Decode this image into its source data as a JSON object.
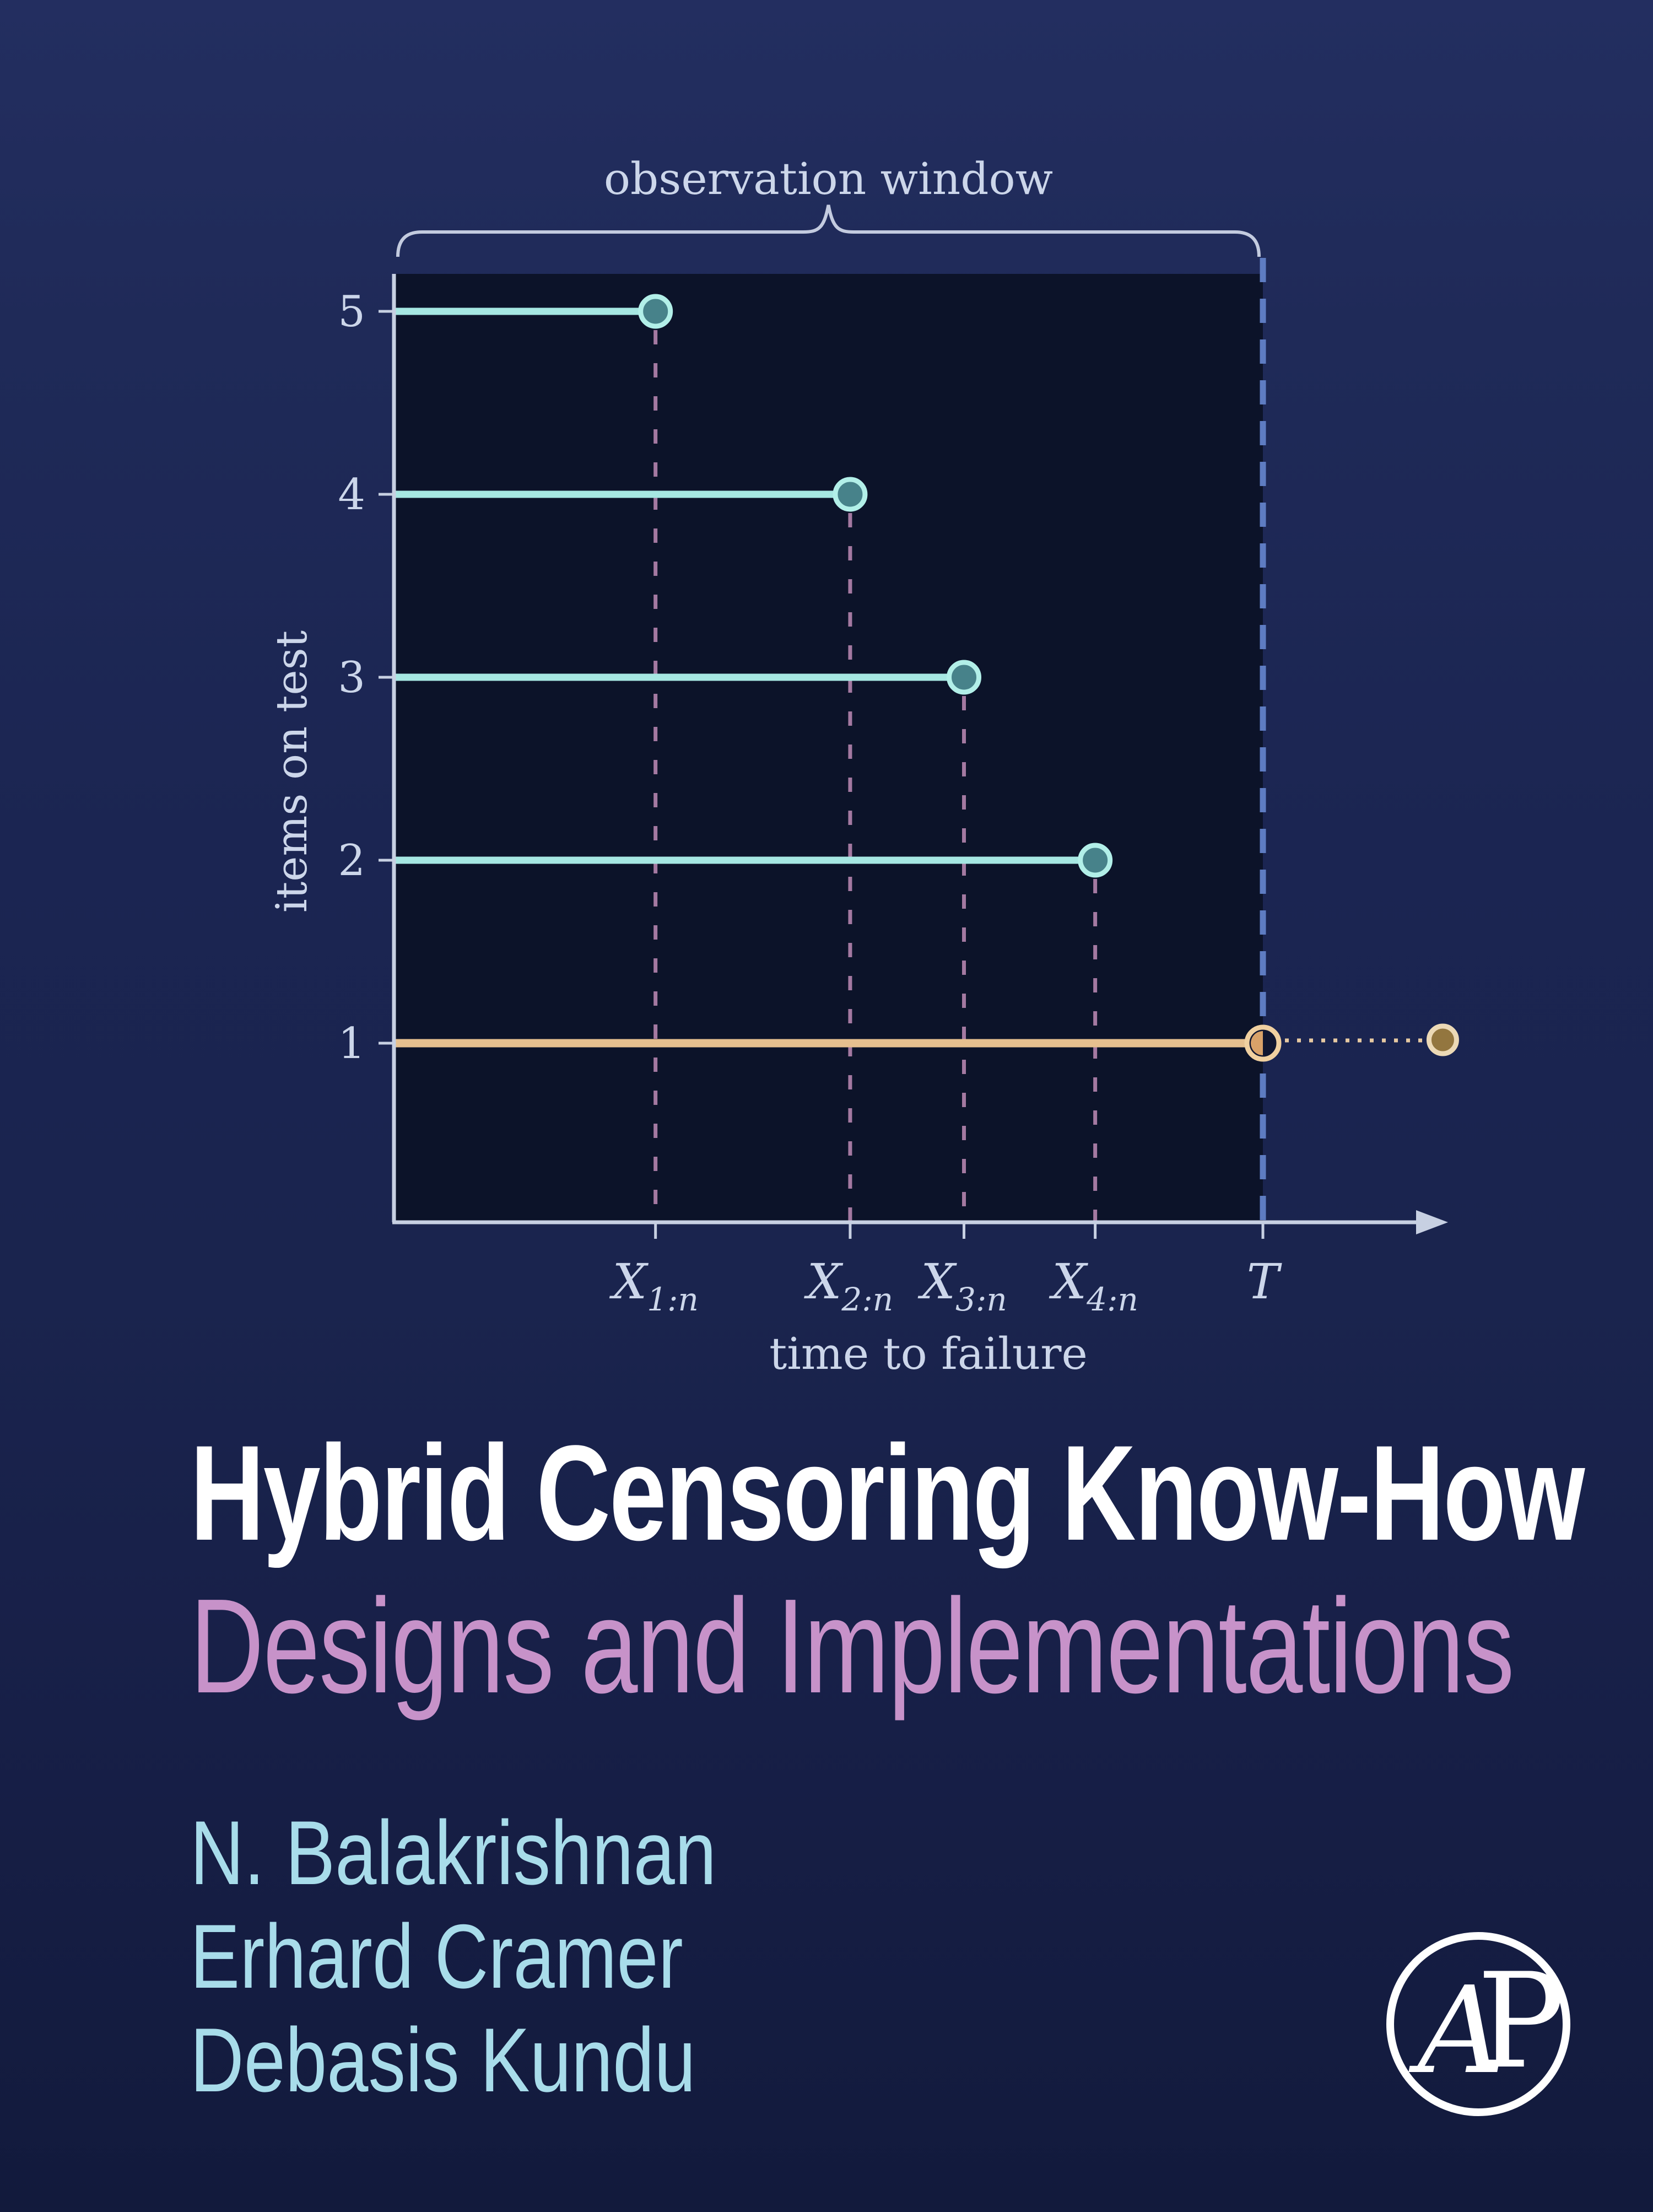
{
  "page": {
    "bg_top": "#232e60",
    "bg_bottom": "#121a3c"
  },
  "chart_data": {
    "type": "scatter",
    "description": "Hybrid censoring scheme: horizontal life-lines for 5 items on test; items 5,4,3,2 fail at ordered failure times X1:n..X4:n inside the observation window ending at time T; item 1 is still running at T (censored), its actual failure occurring beyond T.",
    "annotation": "observation window",
    "xlabel": "time to failure",
    "ylabel": "items on test",
    "y_ticks": [
      "1",
      "2",
      "3",
      "4",
      "5"
    ],
    "x_ticks": [
      {
        "base": "X",
        "sub": "1:n",
        "x": 0.301
      },
      {
        "base": "X",
        "sub": "2:n",
        "x": 0.525
      },
      {
        "base": "X",
        "sub": "3:n",
        "x": 0.656
      },
      {
        "base": "X",
        "sub": "4:n",
        "x": 0.807
      },
      {
        "base": "T",
        "sub": "",
        "x": 1.0
      }
    ],
    "failures": [
      {
        "item": 5,
        "x": 0.301
      },
      {
        "item": 4,
        "x": 0.525
      },
      {
        "item": 3,
        "x": 0.656
      },
      {
        "item": 2,
        "x": 0.807
      }
    ],
    "censored_item": {
      "item": 1,
      "censored_at_x": 1.0,
      "actual_failure_x": 1.207
    },
    "x_axis": {
      "T_x": 1.0,
      "arrow_extent": 1.206
    },
    "grid": false,
    "legend": false,
    "colors": {
      "plot_bg": "#0c1329",
      "axis": "#c7d0e2",
      "tick_label": "#ccd6ea",
      "brace": "#c3cbdf",
      "teal_line": "#a6e7e2",
      "teal_dot_fill": "#47828a",
      "teal_dot_ring": "#b2efe8",
      "failure_dash": "#a479a1",
      "t_dash": "#5e7cc2",
      "censor_line": "#e6c08f",
      "censor_dot_ring": "#f0d0a0",
      "censor_dot_half": "#d9a269",
      "censor_dot_dark": "#101630",
      "dotted_extension": "#e6c9a2",
      "outside_dot_fill": "#93763f",
      "outside_dot_ring": "#ecd9b6"
    }
  },
  "titles": {
    "main": "Hybrid Censoring Know-How",
    "subtitle": "Designs and Implementations",
    "main_color": "#ffffff",
    "subtitle_color": "#c792c9"
  },
  "authors": [
    "N. Balakrishnan",
    "Erhard Cramer",
    "Debasis Kundu"
  ],
  "authors_color": "#a8dcea",
  "publisher": {
    "logo_a": "A",
    "logo_p": "P",
    "logo_color": "#ffffff"
  }
}
